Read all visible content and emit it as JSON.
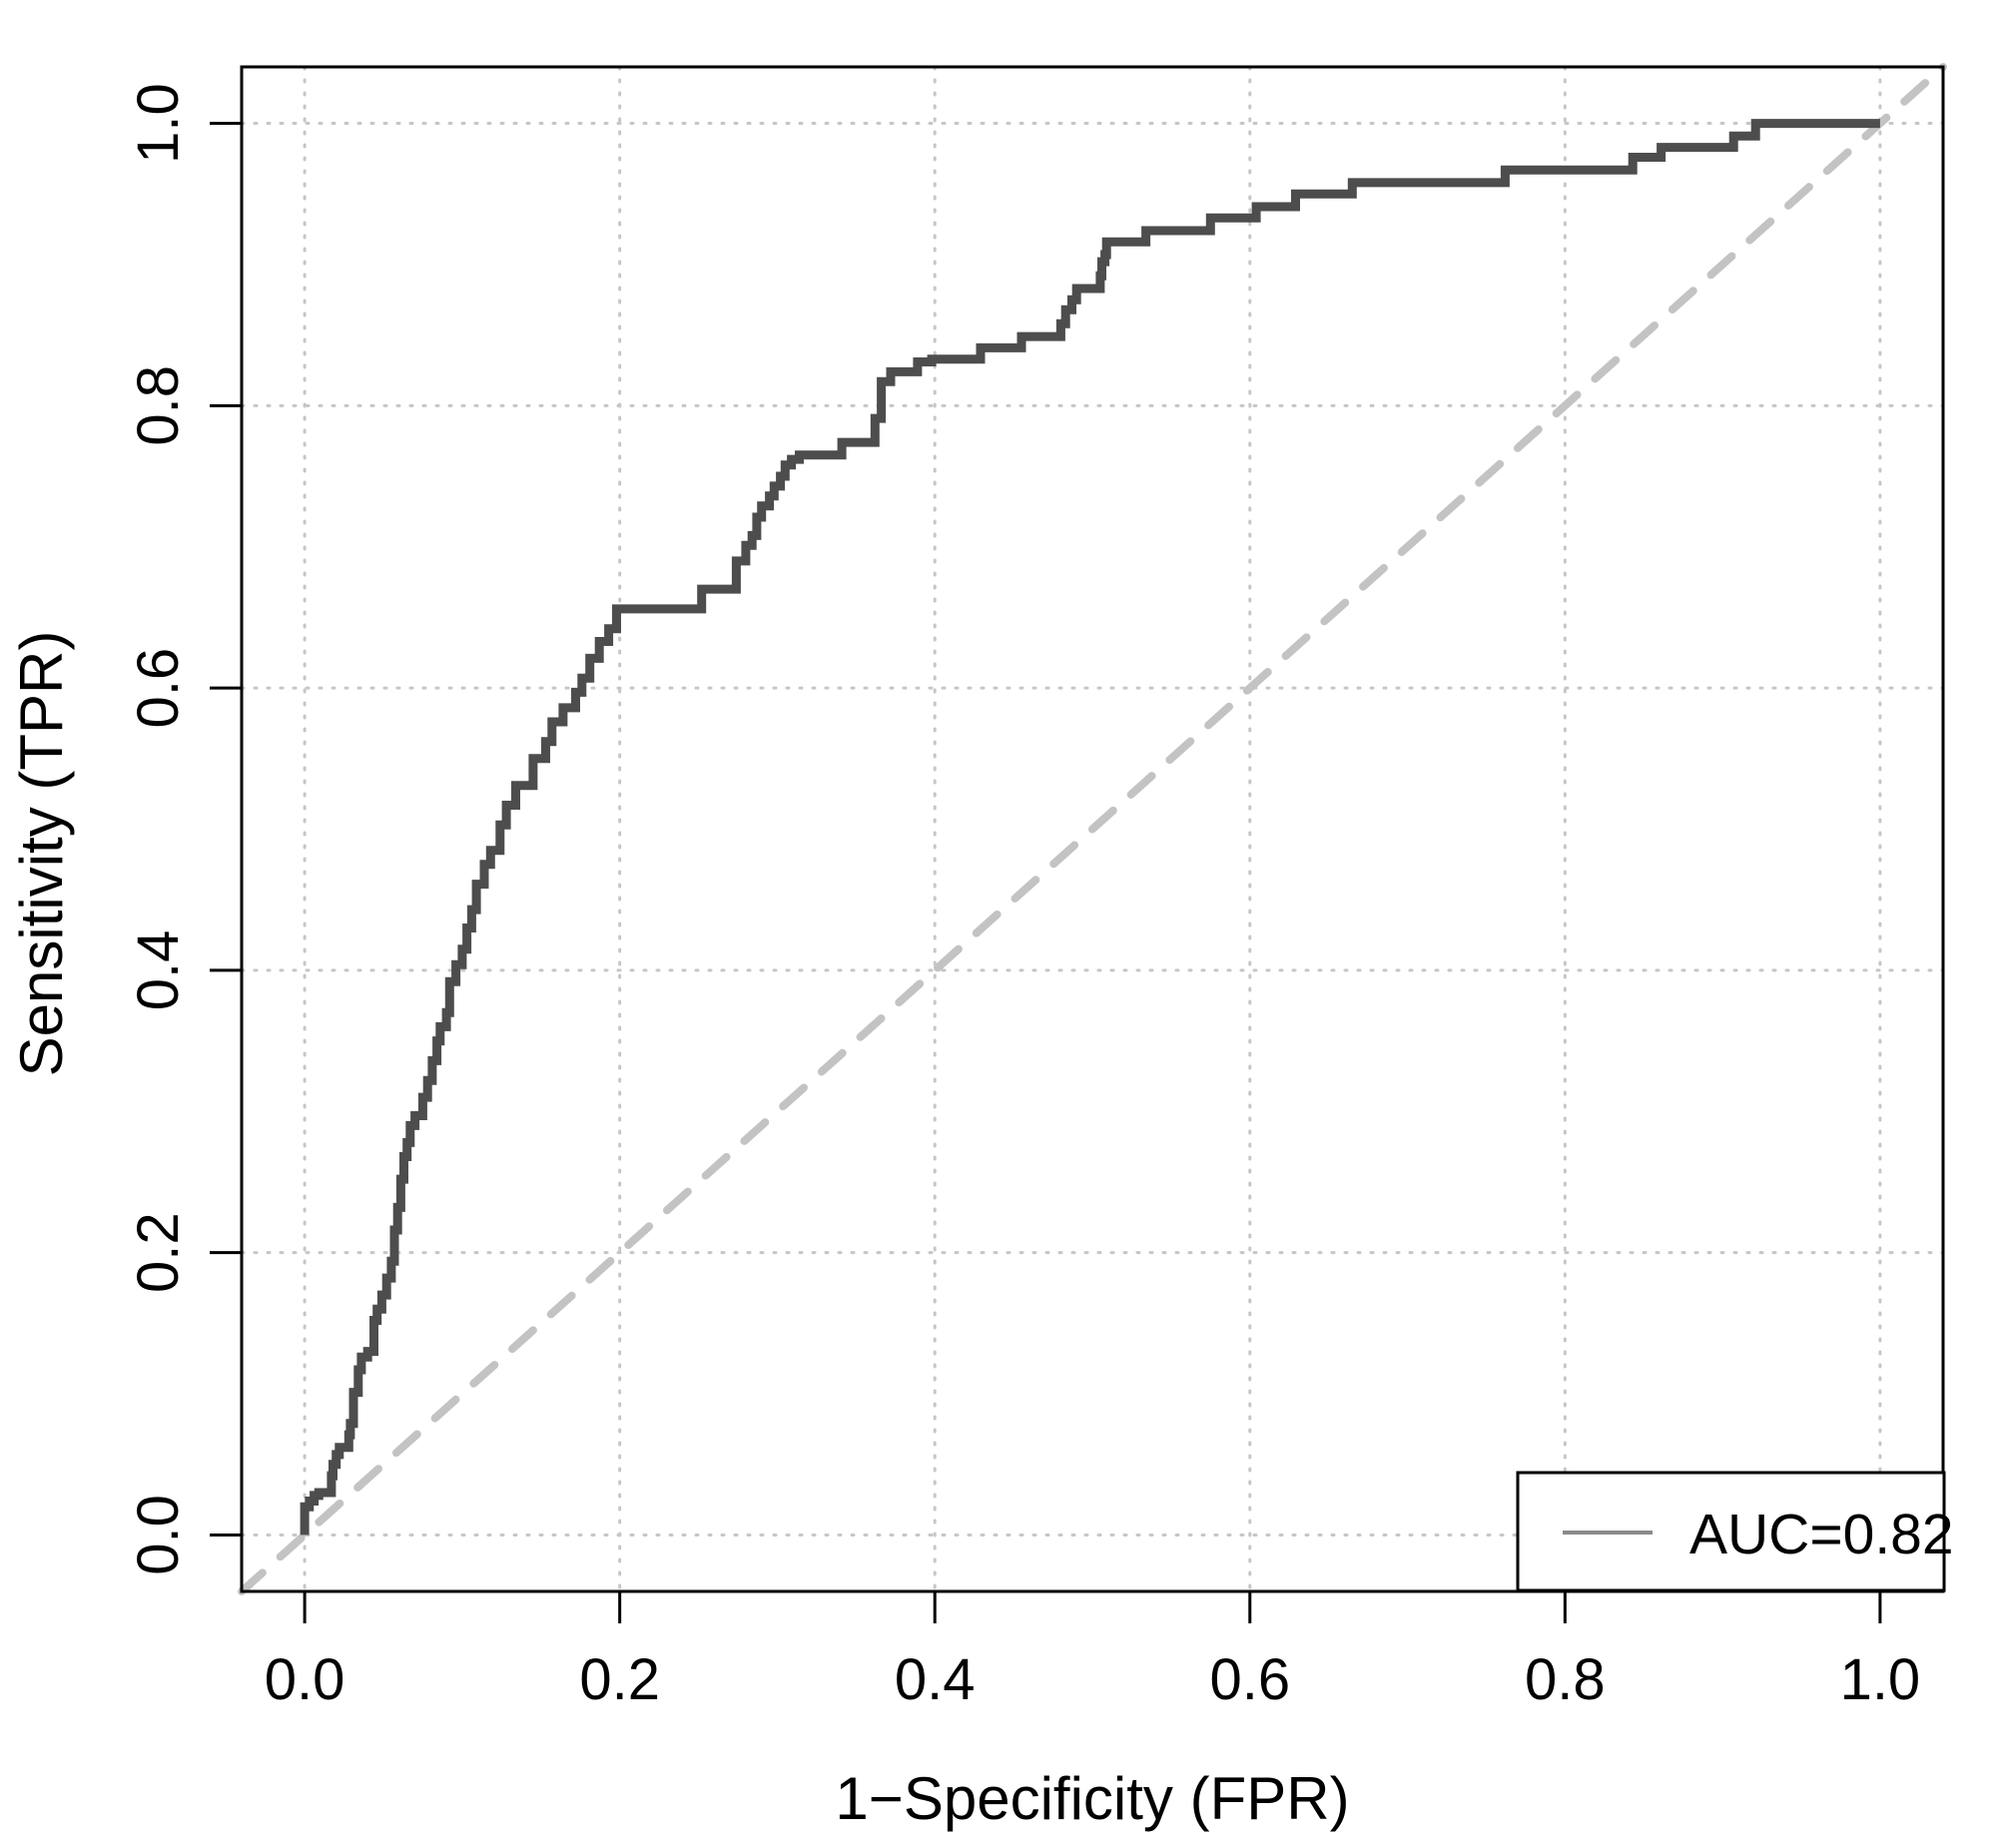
{
  "chart_data": {
    "type": "line",
    "title": "",
    "xlabel": "1−Specificity (FPR)",
    "ylabel": "Sensitivity (TPR)",
    "xlim": [
      -0.04,
      1.04
    ],
    "ylim": [
      -0.04,
      1.04
    ],
    "grid": true,
    "x_ticks": [
      0.0,
      0.2,
      0.4,
      0.6,
      0.8,
      1.0
    ],
    "y_ticks": [
      0.0,
      0.2,
      0.4,
      0.6,
      0.8,
      1.0
    ],
    "x_tick_labels": [
      "0.0",
      "0.2",
      "0.4",
      "0.6",
      "0.8",
      "1.0"
    ],
    "y_tick_labels": [
      "0.0",
      "0.2",
      "0.4",
      "0.6",
      "0.8",
      "1.0"
    ],
    "legend": {
      "position": "bottomright",
      "entries": [
        {
          "label": "AUC=0.82",
          "line_color": "#8a8a8a"
        }
      ]
    },
    "auc": 0.82,
    "series": [
      {
        "name": "ROC curve",
        "style": "step",
        "color": "#4d4d4d",
        "points": [
          [
            0.0,
            0.0
          ],
          [
            0.0,
            0.01
          ],
          [
            0.003,
            0.02
          ],
          [
            0.006,
            0.024
          ],
          [
            0.009,
            0.028
          ],
          [
            0.017,
            0.03
          ],
          [
            0.018,
            0.042
          ],
          [
            0.02,
            0.05
          ],
          [
            0.022,
            0.057
          ],
          [
            0.028,
            0.062
          ],
          [
            0.029,
            0.071
          ],
          [
            0.031,
            0.079
          ],
          [
            0.034,
            0.101
          ],
          [
            0.036,
            0.117
          ],
          [
            0.04,
            0.126
          ],
          [
            0.044,
            0.13
          ],
          [
            0.046,
            0.152
          ],
          [
            0.049,
            0.16
          ],
          [
            0.052,
            0.17
          ],
          [
            0.055,
            0.182
          ],
          [
            0.057,
            0.194
          ],
          [
            0.059,
            0.216
          ],
          [
            0.061,
            0.232
          ],
          [
            0.063,
            0.252
          ],
          [
            0.065,
            0.268
          ],
          [
            0.067,
            0.278
          ],
          [
            0.07,
            0.29
          ],
          [
            0.075,
            0.297
          ],
          [
            0.078,
            0.31
          ],
          [
            0.081,
            0.322
          ],
          [
            0.084,
            0.336
          ],
          [
            0.086,
            0.35
          ],
          [
            0.09,
            0.36
          ],
          [
            0.092,
            0.37
          ],
          [
            0.096,
            0.392
          ],
          [
            0.1,
            0.404
          ],
          [
            0.103,
            0.415
          ],
          [
            0.106,
            0.43
          ],
          [
            0.109,
            0.443
          ],
          [
            0.114,
            0.461
          ],
          [
            0.118,
            0.475
          ],
          [
            0.124,
            0.485
          ],
          [
            0.128,
            0.503
          ],
          [
            0.134,
            0.517
          ],
          [
            0.145,
            0.531
          ],
          [
            0.153,
            0.55
          ],
          [
            0.157,
            0.562
          ],
          [
            0.164,
            0.576
          ],
          [
            0.172,
            0.586
          ],
          [
            0.176,
            0.597
          ],
          [
            0.181,
            0.607
          ],
          [
            0.187,
            0.621
          ],
          [
            0.193,
            0.633
          ],
          [
            0.198,
            0.642
          ],
          [
            0.206,
            0.656
          ],
          [
            0.252,
            0.656
          ],
          [
            0.257,
            0.67
          ],
          [
            0.274,
            0.67
          ],
          [
            0.28,
            0.69
          ],
          [
            0.284,
            0.701
          ],
          [
            0.287,
            0.708
          ],
          [
            0.29,
            0.721
          ],
          [
            0.295,
            0.729
          ],
          [
            0.298,
            0.736
          ],
          [
            0.302,
            0.743
          ],
          [
            0.305,
            0.75
          ],
          [
            0.309,
            0.758
          ],
          [
            0.314,
            0.762
          ],
          [
            0.318,
            0.765
          ],
          [
            0.341,
            0.765
          ],
          [
            0.345,
            0.774
          ],
          [
            0.362,
            0.774
          ],
          [
            0.366,
            0.791
          ],
          [
            0.372,
            0.817
          ],
          [
            0.389,
            0.824
          ],
          [
            0.398,
            0.831
          ],
          [
            0.405,
            0.833
          ],
          [
            0.429,
            0.833
          ],
          [
            0.432,
            0.841
          ],
          [
            0.455,
            0.841
          ],
          [
            0.457,
            0.849
          ],
          [
            0.48,
            0.849
          ],
          [
            0.483,
            0.858
          ],
          [
            0.487,
            0.868
          ],
          [
            0.49,
            0.875
          ],
          [
            0.493,
            0.883
          ],
          [
            0.505,
            0.883
          ],
          [
            0.506,
            0.892
          ],
          [
            0.508,
            0.902
          ],
          [
            0.509,
            0.907
          ],
          [
            0.511,
            0.916
          ],
          [
            0.534,
            0.916
          ],
          [
            0.537,
            0.924
          ],
          [
            0.575,
            0.924
          ],
          [
            0.577,
            0.933
          ],
          [
            0.604,
            0.933
          ],
          [
            0.606,
            0.941
          ],
          [
            0.629,
            0.941
          ],
          [
            0.631,
            0.95
          ],
          [
            0.665,
            0.95
          ],
          [
            0.667,
            0.958
          ],
          [
            0.762,
            0.958
          ],
          [
            0.764,
            0.967
          ],
          [
            0.843,
            0.967
          ],
          [
            0.845,
            0.976
          ],
          [
            0.861,
            0.976
          ],
          [
            0.863,
            0.983
          ],
          [
            0.907,
            0.983
          ],
          [
            0.909,
            0.991
          ],
          [
            0.921,
            0.991
          ],
          [
            0.922,
            1.0
          ],
          [
            1.0,
            1.0
          ]
        ]
      },
      {
        "name": "chance diagonal",
        "style": "dashed",
        "color": "#c3c3c3",
        "points": [
          [
            -0.04,
            -0.04
          ],
          [
            1.04,
            1.04
          ]
        ]
      }
    ]
  },
  "colors": {
    "background": "#ffffff",
    "axis": "#000000",
    "grid": "#c6c6c6",
    "curve": "#4d4d4d",
    "diagonal": "#c3c3c3",
    "legend_line": "#8a8a8a"
  }
}
